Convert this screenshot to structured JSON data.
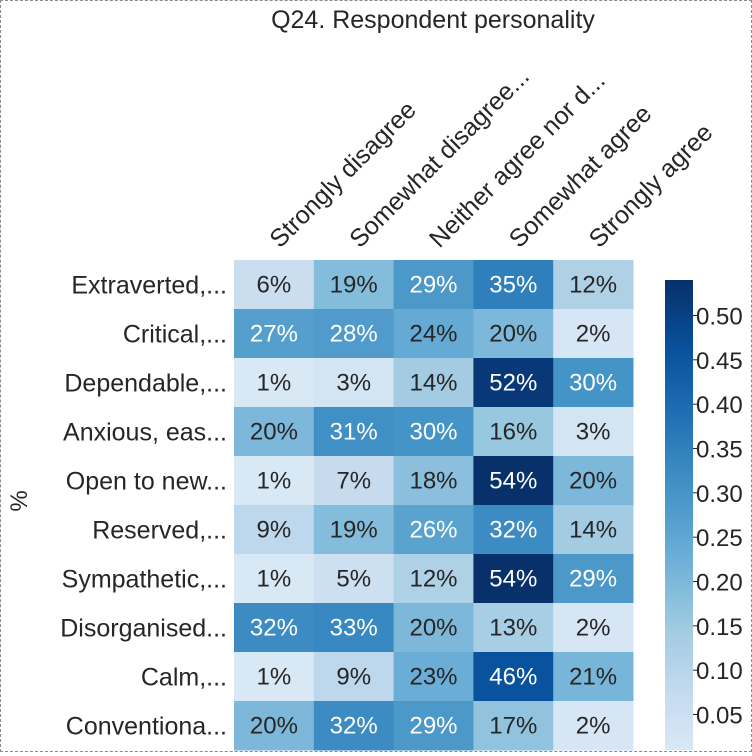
{
  "chart_data": {
    "type": "heatmap",
    "title": "Q24. Respondent personality",
    "ylabel": "%",
    "xlabel": "",
    "columns": [
      "Strongly disagree",
      "Somewhat disagree...",
      "Neither agree nor d...",
      "Somewhat agree",
      "Strongly agree"
    ],
    "rows": [
      "Extraverted,...",
      "Critical,...",
      "Dependable,...",
      "Anxious, eas...",
      "Open to new...",
      "Reserved,...",
      "Sympathetic,...",
      "Disorganised...",
      "Calm,...",
      "Conventiona..."
    ],
    "values": [
      [
        0.06,
        0.19,
        0.29,
        0.35,
        0.12
      ],
      [
        0.27,
        0.28,
        0.24,
        0.2,
        0.02
      ],
      [
        0.01,
        0.03,
        0.14,
        0.52,
        0.3
      ],
      [
        0.2,
        0.31,
        0.3,
        0.16,
        0.03
      ],
      [
        0.01,
        0.07,
        0.18,
        0.54,
        0.2
      ],
      [
        0.09,
        0.19,
        0.26,
        0.32,
        0.14
      ],
      [
        0.01,
        0.05,
        0.12,
        0.54,
        0.29
      ],
      [
        0.32,
        0.33,
        0.2,
        0.13,
        0.02
      ],
      [
        0.01,
        0.09,
        0.23,
        0.46,
        0.21
      ],
      [
        0.2,
        0.32,
        0.29,
        0.17,
        0.02
      ]
    ],
    "value_labels": [
      [
        "6%",
        "19%",
        "29%",
        "35%",
        "12%"
      ],
      [
        "27%",
        "28%",
        "24%",
        "20%",
        "2%"
      ],
      [
        "1%",
        "3%",
        "14%",
        "52%",
        "30%"
      ],
      [
        "20%",
        "31%",
        "30%",
        "16%",
        "3%"
      ],
      [
        "1%",
        "7%",
        "18%",
        "54%",
        "20%"
      ],
      [
        "9%",
        "19%",
        "26%",
        "32%",
        "14%"
      ],
      [
        "1%",
        "5%",
        "12%",
        "54%",
        "29%"
      ],
      [
        "32%",
        "33%",
        "20%",
        "13%",
        "2%"
      ],
      [
        "1%",
        "9%",
        "23%",
        "46%",
        "21%"
      ],
      [
        "20%",
        "32%",
        "29%",
        "17%",
        "2%"
      ]
    ],
    "colorscale": "Blues",
    "color_range": [
      0.01,
      0.54
    ],
    "colorbar_ticks": [
      0.05,
      0.1,
      0.15,
      0.2,
      0.25,
      0.3,
      0.35,
      0.4,
      0.45,
      0.5
    ],
    "colorbar_tick_labels": [
      "0.05",
      "0.10",
      "0.15",
      "0.20",
      "0.25",
      "0.30",
      "0.35",
      "0.40",
      "0.45",
      "0.50"
    ],
    "grid": false
  }
}
